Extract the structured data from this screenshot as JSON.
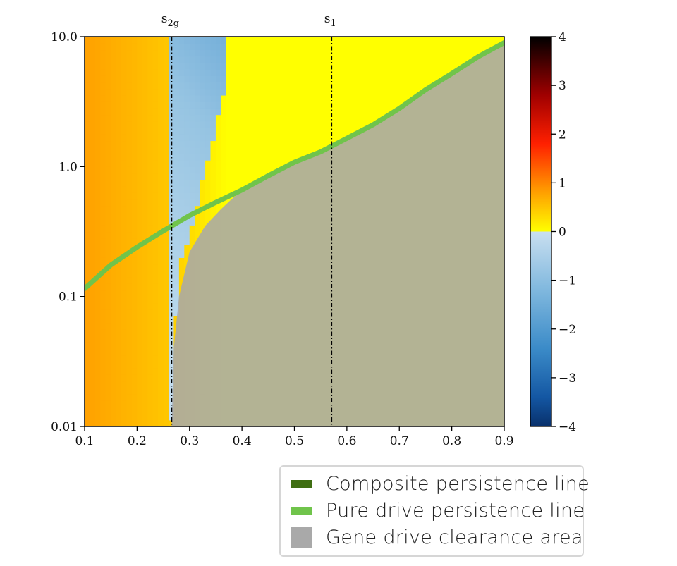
{
  "chart_data": {
    "type": "heatmap",
    "title": "",
    "xlabel": "",
    "ylabel": "",
    "xlim": [
      0.1,
      0.9
    ],
    "ylim": [
      0.01,
      10.0
    ],
    "y_scale": "log",
    "x_ticks": [
      "0.1",
      "0.2",
      "0.3",
      "0.4",
      "0.5",
      "0.6",
      "0.7",
      "0.8",
      "0.9"
    ],
    "y_ticks": [
      "0.01",
      "0.1",
      "1.0",
      "10.0"
    ],
    "vertical_markers": [
      {
        "label_main": "s",
        "label_sub": "2g",
        "x": 0.266
      },
      {
        "label_main": "s",
        "label_sub": "1",
        "x": 0.571
      }
    ],
    "colorbar": {
      "range": [
        -4,
        4
      ],
      "tick_labels": [
        "4",
        "3",
        "2",
        "1",
        "0",
        "−1",
        "−2",
        "−3",
        "−4"
      ],
      "tick_values": [
        4,
        3,
        2,
        1,
        0,
        -1,
        -2,
        -3,
        -4
      ],
      "positive_colormap": "hot (yellow → orange → red → black)",
      "negative_colormap": "blues (light blue → dark navy)"
    },
    "boundary_zero_contour": {
      "x": [
        0.1,
        0.26,
        0.266,
        0.28,
        0.3,
        0.31,
        0.32,
        0.33,
        0.34,
        0.35,
        0.36,
        0.37,
        0.37
      ],
      "y": [
        0.01,
        0.01,
        0.012,
        0.18,
        0.3,
        0.42,
        0.6,
        0.95,
        1.3,
        1.95,
        3.0,
        4.2,
        10.0
      ]
    },
    "series": [
      {
        "name": "Pure drive persistence line",
        "color": "#70c44b",
        "x": [
          0.1,
          0.15,
          0.2,
          0.25,
          0.3,
          0.35,
          0.4,
          0.45,
          0.5,
          0.55,
          0.6,
          0.65,
          0.7,
          0.75,
          0.8,
          0.85,
          0.9
        ],
        "y": [
          0.115,
          0.175,
          0.24,
          0.32,
          0.42,
          0.53,
          0.66,
          0.85,
          1.08,
          1.3,
          1.65,
          2.1,
          2.8,
          3.9,
          5.2,
          7.0,
          9.0
        ]
      },
      {
        "name": "Gene drive clearance area",
        "color": "#a9a9a9",
        "x": [
          0.266,
          0.27,
          0.28,
          0.3,
          0.33,
          0.36,
          0.38,
          0.4,
          0.45,
          0.5,
          0.55,
          0.6,
          0.65,
          0.7,
          0.75,
          0.8,
          0.85,
          0.9
        ],
        "y": [
          0.01,
          0.04,
          0.1,
          0.22,
          0.35,
          0.47,
          0.56,
          0.66,
          0.85,
          1.08,
          1.3,
          1.65,
          2.1,
          2.8,
          3.9,
          5.2,
          7.0,
          9.0
        ]
      }
    ],
    "legend": {
      "placement": "below-right",
      "entries": [
        {
          "label": "Composite persistence line",
          "color": "#3f6e12",
          "kind": "line"
        },
        {
          "label": "Pure drive persistence line",
          "color": "#70c44b",
          "kind": "line"
        },
        {
          "label": "Gene drive clearance area",
          "color": "#a9a9a9",
          "kind": "patch"
        }
      ]
    }
  }
}
